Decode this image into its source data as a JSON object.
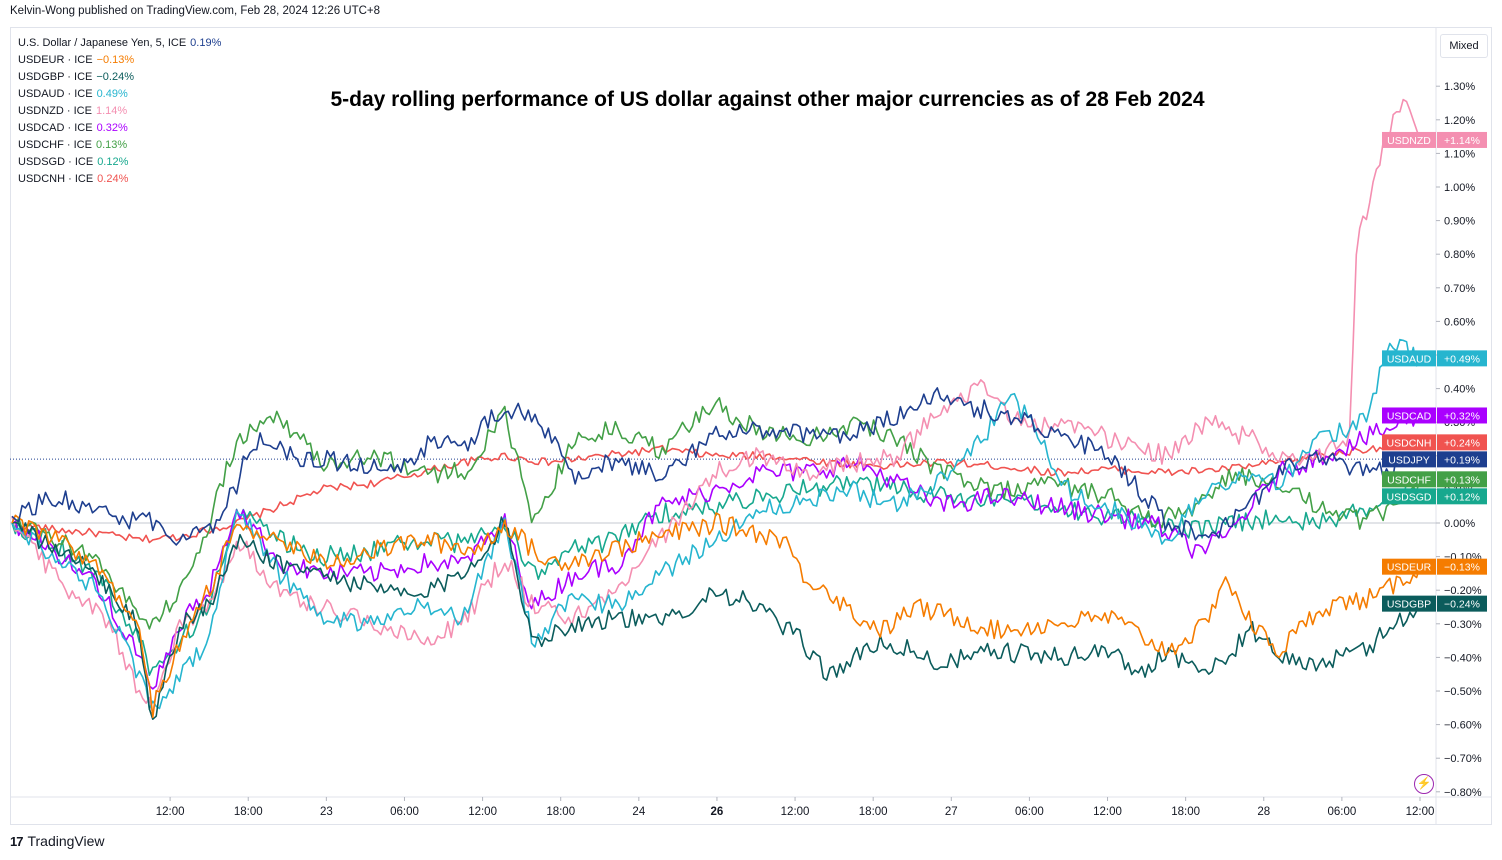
{
  "publish_line": "Kelvin-Wong published on TradingView.com, Feb 28, 2024 12:26 UTC+8",
  "scale_mode_button": "Mixed",
  "brand": "TradingView",
  "brand_icon": "tradingview-logo-icon",
  "alert_icon": "lightning-icon",
  "legend": [
    {
      "name": "U.S. Dollar / Japanese Yen, 5, ICE",
      "value": "0.19%",
      "color": "#1e3f8f"
    },
    {
      "name": "USDEUR · ICE",
      "value": "−0.13%",
      "color": "#f57c00"
    },
    {
      "name": "USDGBP · ICE",
      "value": "−0.24%",
      "color": "#0b5c5c"
    },
    {
      "name": "USDAUD · ICE",
      "value": "0.49%",
      "color": "#26b5cf"
    },
    {
      "name": "USDNZD · ICE",
      "value": "1.14%",
      "color": "#f48fb1"
    },
    {
      "name": "USDCAD · ICE",
      "value": "0.32%",
      "color": "#aa00ff"
    },
    {
      "name": "USDCHF · ICE",
      "value": "0.13%",
      "color": "#43a047"
    },
    {
      "name": "USDSGD · ICE",
      "value": "0.12%",
      "color": "#17a88e"
    },
    {
      "name": "USDCNH · ICE",
      "value": "0.24%",
      "color": "#f05350"
    }
  ],
  "chart_data": {
    "type": "line",
    "title": "5-day rolling performance of US dollar against other major currencies as of 28 Feb 2024",
    "ylabel": "",
    "xlabel": "",
    "ylim": [
      -0.8,
      1.35
    ],
    "y_ticks": [
      "1.30%",
      "1.20%",
      "1.10%",
      "1.00%",
      "0.90%",
      "0.80%",
      "0.70%",
      "0.60%",
      "0.50%",
      "0.40%",
      "0.30%",
      "0.20%",
      "0.10%",
      "0.00%",
      "−0.10%",
      "−0.20%",
      "−0.30%",
      "−0.40%",
      "−0.50%",
      "−0.60%",
      "−0.70%",
      "−0.80%"
    ],
    "y_tick_values": [
      1.3,
      1.2,
      1.1,
      1.0,
      0.9,
      0.8,
      0.7,
      0.6,
      0.5,
      0.4,
      0.3,
      0.2,
      0.1,
      0.0,
      -0.1,
      -0.2,
      -0.3,
      -0.4,
      -0.5,
      -0.6,
      -0.7,
      -0.8
    ],
    "x_ticks": [
      "12:00",
      "18:00",
      "23",
      "06:00",
      "12:00",
      "18:00",
      "24",
      "26",
      "12:00",
      "18:00",
      "27",
      "06:00",
      "12:00",
      "18:00",
      "28",
      "06:00",
      "12:00"
    ],
    "x_tick_positions": [
      0.06,
      0.12,
      0.18,
      0.24,
      0.3,
      0.36,
      0.42,
      0.48,
      0.54,
      0.6,
      0.66,
      0.72,
      0.78,
      0.84,
      0.9,
      0.96,
      1.02
    ],
    "x_tick_bold": [
      false,
      false,
      false,
      false,
      false,
      false,
      false,
      true,
      false,
      false,
      false,
      false,
      false,
      false,
      false,
      false,
      false
    ],
    "grid": false,
    "zero_line": true,
    "series": [
      {
        "name": "USDJPY",
        "tag": "USDJPY",
        "tag_value": "+0.19%",
        "color": "#1e3f8f",
        "x": [
          0,
          0.03,
          0.07,
          0.1,
          0.12,
          0.14,
          0.16,
          0.17,
          0.2,
          0.24,
          0.27,
          0.3,
          0.32,
          0.35,
          0.38,
          0.4,
          0.42,
          0.46,
          0.5,
          0.54,
          0.58,
          0.62,
          0.65,
          0.68,
          0.72,
          0.75,
          0.78,
          0.82,
          0.85,
          0.88,
          0.9,
          0.93,
          0.96,
          0.99,
          1.0
        ],
        "y": [
          0.02,
          0.08,
          0.02,
          0.0,
          -0.05,
          -0.02,
          0.12,
          0.25,
          0.2,
          0.18,
          0.15,
          0.25,
          0.22,
          0.35,
          0.28,
          0.12,
          0.18,
          0.15,
          0.26,
          0.28,
          0.25,
          0.3,
          0.38,
          0.35,
          0.3,
          0.25,
          0.2,
          0.0,
          -0.05,
          0.05,
          0.15,
          0.2,
          0.15,
          0.18,
          0.19
        ]
      },
      {
        "name": "USDEUR",
        "tag": "USDEUR",
        "tag_value": "−0.13%",
        "color": "#f57c00",
        "x": [
          0,
          0.03,
          0.06,
          0.09,
          0.1,
          0.12,
          0.14,
          0.16,
          0.19,
          0.22,
          0.26,
          0.29,
          0.33,
          0.35,
          0.38,
          0.41,
          0.45,
          0.5,
          0.55,
          0.56,
          0.58,
          0.6,
          0.62,
          0.64,
          0.67,
          0.7,
          0.74,
          0.78,
          0.82,
          0.85,
          0.86,
          0.88,
          0.9,
          0.93,
          0.97,
          1.0
        ],
        "y": [
          0.0,
          -0.05,
          -0.12,
          -0.3,
          -0.55,
          -0.35,
          -0.2,
          0.0,
          -0.05,
          -0.12,
          -0.08,
          -0.05,
          -0.08,
          0.0,
          -0.12,
          -0.1,
          -0.05,
          0.0,
          -0.05,
          -0.15,
          -0.2,
          -0.28,
          -0.32,
          -0.25,
          -0.28,
          -0.32,
          -0.3,
          -0.28,
          -0.38,
          -0.3,
          -0.15,
          -0.3,
          -0.38,
          -0.25,
          -0.22,
          -0.13
        ]
      },
      {
        "name": "USDGBP",
        "tag": "USDGBP",
        "tag_value": "−0.24%",
        "color": "#0b5c5c",
        "x": [
          0,
          0.03,
          0.06,
          0.09,
          0.1,
          0.12,
          0.14,
          0.16,
          0.19,
          0.22,
          0.26,
          0.29,
          0.32,
          0.35,
          0.37,
          0.4,
          0.43,
          0.46,
          0.5,
          0.53,
          0.56,
          0.58,
          0.6,
          0.62,
          0.66,
          0.7,
          0.74,
          0.78,
          0.8,
          0.82,
          0.85,
          0.88,
          0.9,
          0.93,
          0.96,
          1.0
        ],
        "y": [
          0.0,
          -0.08,
          -0.15,
          -0.3,
          -0.6,
          -0.3,
          -0.25,
          -0.05,
          -0.12,
          -0.15,
          -0.2,
          -0.22,
          -0.15,
          0.0,
          -0.35,
          -0.3,
          -0.28,
          -0.3,
          -0.2,
          -0.25,
          -0.35,
          -0.45,
          -0.4,
          -0.35,
          -0.42,
          -0.38,
          -0.4,
          -0.38,
          -0.45,
          -0.38,
          -0.45,
          -0.32,
          -0.4,
          -0.42,
          -0.38,
          -0.24
        ]
      },
      {
        "name": "USDAUD",
        "tag": "USDAUD",
        "tag_value": "+0.49%",
        "color": "#26b5cf",
        "x": [
          0,
          0.03,
          0.06,
          0.09,
          0.1,
          0.12,
          0.14,
          0.16,
          0.19,
          0.22,
          0.26,
          0.29,
          0.32,
          0.35,
          0.37,
          0.4,
          0.43,
          0.46,
          0.5,
          0.54,
          0.58,
          0.6,
          0.62,
          0.65,
          0.68,
          0.71,
          0.73,
          0.75,
          0.78,
          0.82,
          0.85,
          0.88,
          0.9,
          0.93,
          0.96,
          0.98,
          1.0
        ],
        "y": [
          0.0,
          -0.1,
          -0.2,
          -0.45,
          -0.55,
          -0.45,
          -0.35,
          0.05,
          -0.15,
          -0.28,
          -0.3,
          -0.25,
          -0.28,
          0.0,
          -0.35,
          -0.22,
          -0.25,
          -0.15,
          -0.05,
          0.05,
          0.08,
          0.1,
          0.05,
          0.1,
          0.2,
          0.38,
          0.25,
          0.1,
          0.05,
          -0.05,
          0.1,
          0.15,
          0.12,
          0.25,
          0.3,
          0.55,
          0.49
        ]
      },
      {
        "name": "USDNZD",
        "tag": "USDNZD",
        "tag_value": "+1.14%",
        "color": "#f48fb1",
        "x": [
          0,
          0.02,
          0.04,
          0.07,
          0.09,
          0.1,
          0.12,
          0.14,
          0.16,
          0.19,
          0.22,
          0.26,
          0.29,
          0.32,
          0.35,
          0.37,
          0.4,
          0.43,
          0.46,
          0.5,
          0.53,
          0.56,
          0.6,
          0.63,
          0.66,
          0.69,
          0.72,
          0.75,
          0.78,
          0.82,
          0.85,
          0.88,
          0.9,
          0.93,
          0.95,
          0.955,
          0.96,
          0.97,
          0.98,
          0.99,
          1.0
        ],
        "y": [
          0.02,
          -0.1,
          -0.2,
          -0.3,
          -0.5,
          -0.55,
          -0.3,
          -0.25,
          -0.05,
          -0.2,
          -0.25,
          -0.3,
          -0.35,
          -0.3,
          -0.1,
          -0.25,
          -0.28,
          -0.2,
          -0.05,
          0.15,
          0.2,
          0.15,
          0.18,
          0.2,
          0.35,
          0.4,
          0.28,
          0.3,
          0.25,
          0.2,
          0.3,
          0.25,
          0.2,
          0.2,
          0.25,
          0.85,
          0.9,
          1.05,
          1.2,
          1.25,
          1.14
        ]
      },
      {
        "name": "USDCAD",
        "tag": "USDCAD",
        "tag_value": "+0.32%",
        "color": "#aa00ff",
        "x": [
          0,
          0.03,
          0.06,
          0.09,
          0.1,
          0.12,
          0.14,
          0.16,
          0.19,
          0.22,
          0.26,
          0.29,
          0.32,
          0.35,
          0.37,
          0.4,
          0.43,
          0.46,
          0.5,
          0.53,
          0.56,
          0.6,
          0.63,
          0.66,
          0.7,
          0.74,
          0.78,
          0.81,
          0.84,
          0.86,
          0.88,
          0.9,
          0.93,
          0.96,
          1.0
        ],
        "y": [
          0.0,
          -0.08,
          -0.18,
          -0.4,
          -0.5,
          -0.3,
          -0.2,
          0.05,
          -0.12,
          -0.15,
          -0.15,
          -0.12,
          -0.12,
          0.0,
          -0.25,
          -0.15,
          -0.12,
          0.05,
          0.1,
          0.15,
          0.15,
          0.18,
          0.12,
          0.05,
          0.08,
          0.05,
          0.02,
          0.0,
          -0.08,
          -0.05,
          0.05,
          0.15,
          0.2,
          0.25,
          0.32
        ]
      },
      {
        "name": "USDCHF",
        "tag": "USDCHF",
        "tag_value": "+0.13%",
        "color": "#43a047",
        "x": [
          0,
          0.03,
          0.06,
          0.09,
          0.1,
          0.12,
          0.14,
          0.16,
          0.19,
          0.22,
          0.26,
          0.29,
          0.32,
          0.35,
          0.37,
          0.4,
          0.43,
          0.46,
          0.5,
          0.53,
          0.56,
          0.6,
          0.63,
          0.66,
          0.7,
          0.74,
          0.78,
          0.81,
          0.84,
          0.87,
          0.9,
          0.93,
          0.96,
          0.98,
          1.0
        ],
        "y": [
          0.0,
          -0.05,
          -0.1,
          -0.28,
          -0.3,
          -0.2,
          0.0,
          0.25,
          0.32,
          0.18,
          0.2,
          0.15,
          0.15,
          0.32,
          0.0,
          0.25,
          0.28,
          0.22,
          0.35,
          0.28,
          0.25,
          0.3,
          0.25,
          0.15,
          0.1,
          0.12,
          0.08,
          0.0,
          0.05,
          0.15,
          0.1,
          0.05,
          0.0,
          0.05,
          0.13
        ]
      },
      {
        "name": "USDSGD",
        "tag": "USDSGD",
        "tag_value": "+0.12%",
        "color": "#17a88e",
        "x": [
          0,
          0.03,
          0.06,
          0.09,
          0.1,
          0.12,
          0.14,
          0.16,
          0.19,
          0.22,
          0.26,
          0.29,
          0.32,
          0.35,
          0.37,
          0.4,
          0.43,
          0.46,
          0.5,
          0.53,
          0.56,
          0.6,
          0.63,
          0.66,
          0.7,
          0.74,
          0.78,
          0.81,
          0.84,
          0.87,
          0.9,
          0.93,
          0.96,
          1.0
        ],
        "y": [
          0.0,
          -0.06,
          -0.15,
          -0.35,
          -0.45,
          -0.35,
          -0.25,
          0.05,
          -0.05,
          -0.1,
          -0.08,
          -0.05,
          -0.06,
          0.0,
          -0.15,
          -0.08,
          -0.05,
          0.03,
          0.05,
          0.08,
          0.1,
          0.12,
          0.1,
          0.08,
          0.06,
          0.05,
          0.02,
          0.0,
          -0.02,
          0.0,
          0.02,
          0.0,
          0.04,
          0.12
        ]
      },
      {
        "name": "USDCNH",
        "tag": "USDCNH",
        "tag_value": "+0.24%",
        "color": "#f05350",
        "x": [
          0,
          0.03,
          0.06,
          0.09,
          0.12,
          0.14,
          0.16,
          0.19,
          0.22,
          0.26,
          0.29,
          0.32,
          0.35,
          0.38,
          0.42,
          0.46,
          0.5,
          0.54,
          0.58,
          0.62,
          0.66,
          0.7,
          0.74,
          0.78,
          0.82,
          0.86,
          0.9,
          0.93,
          0.96,
          1.0
        ],
        "y": [
          0.0,
          -0.02,
          -0.03,
          -0.05,
          -0.04,
          -0.02,
          0.0,
          0.05,
          0.1,
          0.12,
          0.15,
          0.18,
          0.2,
          0.18,
          0.2,
          0.22,
          0.2,
          0.2,
          0.18,
          0.17,
          0.18,
          0.17,
          0.15,
          0.16,
          0.15,
          0.16,
          0.18,
          0.2,
          0.22,
          0.24
        ]
      }
    ],
    "tag_order": [
      "USDNZD",
      "USDAUD",
      "USDCAD",
      "USDCNH",
      "USDJPY",
      "USDCHF",
      "USDSGD",
      "USDEUR",
      "USDGBP"
    ]
  }
}
